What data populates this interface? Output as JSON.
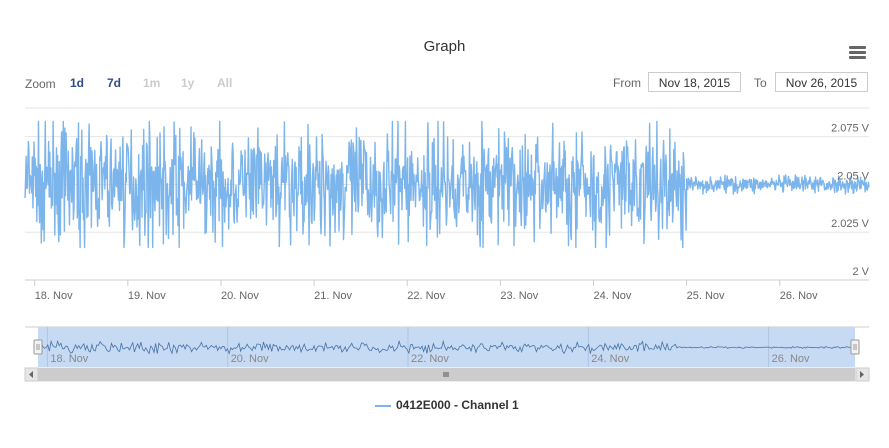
{
  "title": "Graph",
  "zoom": {
    "label": "Zoom",
    "buttons": [
      {
        "label": "1d",
        "state": "active"
      },
      {
        "label": "7d",
        "state": "active"
      },
      {
        "label": "1m",
        "state": "disabled"
      },
      {
        "label": "1y",
        "state": "disabled"
      },
      {
        "label": "All",
        "state": "disabled"
      }
    ]
  },
  "range": {
    "from_label": "From",
    "from_value": "Nov 18, 2015",
    "to_label": "To",
    "to_value": "Nov 26, 2015"
  },
  "legend": {
    "name": "0412E000 - Channel 1"
  },
  "colors": {
    "series": "#7cb5ec",
    "navigator_fill": "#c7daf3",
    "grid": "#e6e6e6"
  },
  "chart_data": {
    "type": "line",
    "title": "Graph",
    "x_start": "Nov 17, 2015 21:30",
    "x_end": "Nov 26, 2015 23:00",
    "x_ticks": [
      "18. Nov",
      "19. Nov",
      "20. Nov",
      "21. Nov",
      "22. Nov",
      "23. Nov",
      "24. Nov",
      "25. Nov",
      "26. Nov"
    ],
    "y_ticks": [
      "2 V",
      "2.025 V",
      "2.05 V",
      "2.075 V"
    ],
    "y_tick_values": [
      2.0,
      2.025,
      2.05,
      2.075
    ],
    "ylim": [
      2.0,
      2.09
    ],
    "navigator_ticks": [
      "18. Nov",
      "20. Nov",
      "22. Nov",
      "24. Nov",
      "26. Nov"
    ],
    "series": [
      {
        "name": "0412E000 - Channel 1",
        "mean": 2.05,
        "approx_peak_to_peak_nov18_to_nov25": [
          2.017,
          2.083
        ],
        "approx_peak_to_peak_after_nov25": [
          2.045,
          2.055
        ]
      }
    ]
  }
}
